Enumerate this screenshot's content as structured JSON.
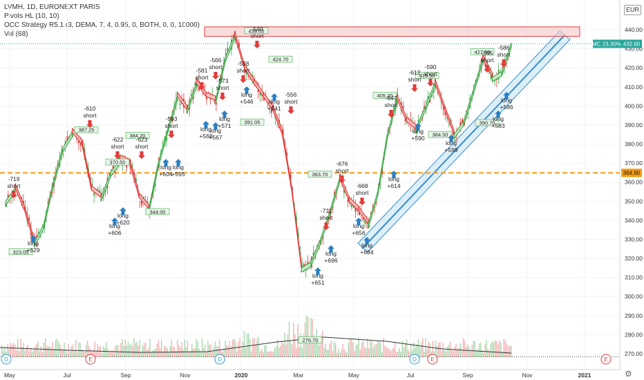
{
  "legend": {
    "title": "LVMH, 1D, EURONEXT PARIS",
    "line2": "Pivots HL (10, 10)",
    "line3": "OCC Strategy R5.1 (3, DEMA, 7, 4, 0.95, 0, BOTH, 0, 0, 10000)",
    "line4": "Vol (68)"
  },
  "currency": "EUR",
  "colors": {
    "up": "#3fa94a",
    "down": "#e23b3b",
    "bg_up": "#cdebd0",
    "bg_down": "#f7c5c5",
    "axis_text": "#333333",
    "hline": "#f39c12",
    "channel": "#3a8dc8",
    "channel_fill": "#cfe8f5",
    "price_badge": "#26a69a",
    "mc_badge": "#26a69a"
  },
  "chart_data": {
    "type": "candlestick",
    "y_axis": {
      "ticks": [
        270,
        280,
        290,
        300,
        310,
        320,
        330,
        340,
        350,
        360,
        370,
        380,
        390,
        400,
        410,
        420,
        430,
        440
      ],
      "range": [
        265,
        447
      ]
    },
    "x_axis": {
      "ticks": [
        "May",
        "Jul",
        "Sep",
        "Nov",
        "2020",
        "Mar",
        "May",
        "Jul",
        "Sep",
        "Nov",
        "2021"
      ]
    },
    "price_path": [
      [
        "May",
        350
      ],
      [
        "",
        357
      ],
      [
        "",
        345
      ],
      [
        "",
        328
      ],
      [
        "",
        338
      ],
      [
        "Jul",
        360
      ],
      [
        "",
        378
      ],
      [
        "",
        386
      ],
      [
        "",
        380
      ],
      [
        "",
        356
      ],
      [
        "",
        352
      ],
      [
        "",
        365
      ],
      [
        "Sep",
        372
      ],
      [
        "",
        370
      ],
      [
        "",
        352
      ],
      [
        "",
        346
      ],
      [
        "",
        370
      ],
      [
        "",
        388
      ],
      [
        "Nov",
        405
      ],
      [
        "",
        398
      ],
      [
        "",
        412
      ],
      [
        "",
        405
      ],
      [
        "",
        403
      ],
      [
        "",
        425
      ],
      [
        "2020",
        437
      ],
      [
        "",
        420
      ],
      [
        "",
        412
      ],
      [
        "",
        405
      ],
      [
        "",
        398
      ],
      [
        "",
        385
      ],
      [
        "Mar",
        355
      ],
      [
        "",
        315
      ],
      [
        "",
        318
      ],
      [
        "",
        330
      ],
      [
        "",
        345
      ],
      [
        "",
        362
      ],
      [
        "May",
        350
      ],
      [
        "",
        345
      ],
      [
        "",
        338
      ],
      [
        "",
        355
      ],
      [
        "",
        385
      ],
      [
        "",
        404
      ],
      [
        "Jul",
        392
      ],
      [
        "",
        388
      ],
      [
        "",
        400
      ],
      [
        "",
        412
      ],
      [
        "",
        398
      ],
      [
        "",
        385
      ],
      [
        "Sep",
        392
      ],
      [
        "",
        408
      ],
      [
        "",
        425
      ],
      [
        "",
        415
      ],
      [
        "",
        418
      ],
      [
        "",
        433
      ]
    ],
    "horizontal_line": 364.9,
    "current_price": 432.6,
    "market_cap_label": "MC 23.30%",
    "price_badge": "432.60",
    "hline_badge": "364.90",
    "resistance_box": {
      "from": 436.5,
      "to": 441.5
    },
    "pivot_labels": [
      {
        "text": "323.05",
        "x": "May",
        "y": 323
      },
      {
        "text": "387.25",
        "x": "Jul",
        "y": 387
      },
      {
        "text": "370.50",
        "x": "Jul",
        "y": 370
      },
      {
        "text": "344.00",
        "x": "Sep",
        "y": 344
      },
      {
        "text": "384.20",
        "x": "Sep",
        "y": 384
      },
      {
        "text": "391.05",
        "x": "2020",
        "y": 391
      },
      {
        "text": "439.05",
        "x": "2020",
        "y": 439
      },
      {
        "text": "424.70",
        "x": "2020",
        "y": 424
      },
      {
        "text": "363.70",
        "x": "Mar",
        "y": 363.7
      },
      {
        "text": "276.70",
        "x": "Mar",
        "y": 276.7
      },
      {
        "text": "405.20",
        "x": "May",
        "y": 405
      },
      {
        "text": "384.50",
        "x": "Jul",
        "y": 384.5
      },
      {
        "text": "415.50",
        "x": "Jul",
        "y": 415.5
      },
      {
        "text": "427.90",
        "x": "Sep",
        "y": 427.9
      },
      {
        "text": "390.70",
        "x": "Sep",
        "y": 390.7
      }
    ],
    "signals": [
      {
        "dir": "short",
        "text": "-719 short"
      },
      {
        "dir": "long",
        "text": "long +629"
      },
      {
        "dir": "short",
        "text": "-610 short"
      },
      {
        "dir": "short",
        "text": "-622 short"
      },
      {
        "dir": "long",
        "text": "long +606"
      },
      {
        "dir": "short",
        "text": "-623 short"
      },
      {
        "dir": "long",
        "text": "long +620"
      },
      {
        "dir": "long",
        "text": "long +604"
      },
      {
        "dir": "long",
        "text": "long +595"
      },
      {
        "dir": "short",
        "text": "-593 short"
      },
      {
        "dir": "long",
        "text": "long +568"
      },
      {
        "dir": "short",
        "text": "-581 short"
      },
      {
        "dir": "short",
        "text": "-566 short"
      },
      {
        "dir": "short",
        "text": "-573 short"
      },
      {
        "dir": "long",
        "text": "long +571"
      },
      {
        "dir": "long",
        "text": "long +567"
      },
      {
        "dir": "short",
        "text": "-558 short"
      },
      {
        "dir": "short",
        "text": "-540 short"
      },
      {
        "dir": "long",
        "text": "long +546"
      },
      {
        "dir": "long",
        "text": "long +541"
      },
      {
        "dir": "short",
        "text": "-556 short"
      },
      {
        "dir": "long",
        "text": "long +651"
      },
      {
        "dir": "short",
        "text": "-711 short"
      },
      {
        "dir": "long",
        "text": "long +696"
      },
      {
        "dir": "short",
        "text": "-676 short"
      },
      {
        "dir": "short",
        "text": "-668 short"
      },
      {
        "dir": "long",
        "text": "long +656"
      },
      {
        "dir": "long",
        "text": "long +684"
      },
      {
        "dir": "short",
        "text": "-647 short"
      },
      {
        "dir": "long",
        "text": "long +614"
      },
      {
        "dir": "short",
        "text": "-612 short"
      },
      {
        "dir": "long",
        "text": "long +590"
      },
      {
        "dir": "short",
        "text": "-590 short"
      },
      {
        "dir": "long",
        "text": "long +599"
      },
      {
        "dir": "short",
        "text": "-595 short"
      },
      {
        "dir": "short",
        "text": "-586 short"
      },
      {
        "dir": "long",
        "text": "long +586"
      },
      {
        "dir": "long",
        "text": "long +583"
      }
    ],
    "event_markers": [
      "D",
      "E",
      "E",
      "D",
      "D",
      "E",
      "E"
    ]
  }
}
